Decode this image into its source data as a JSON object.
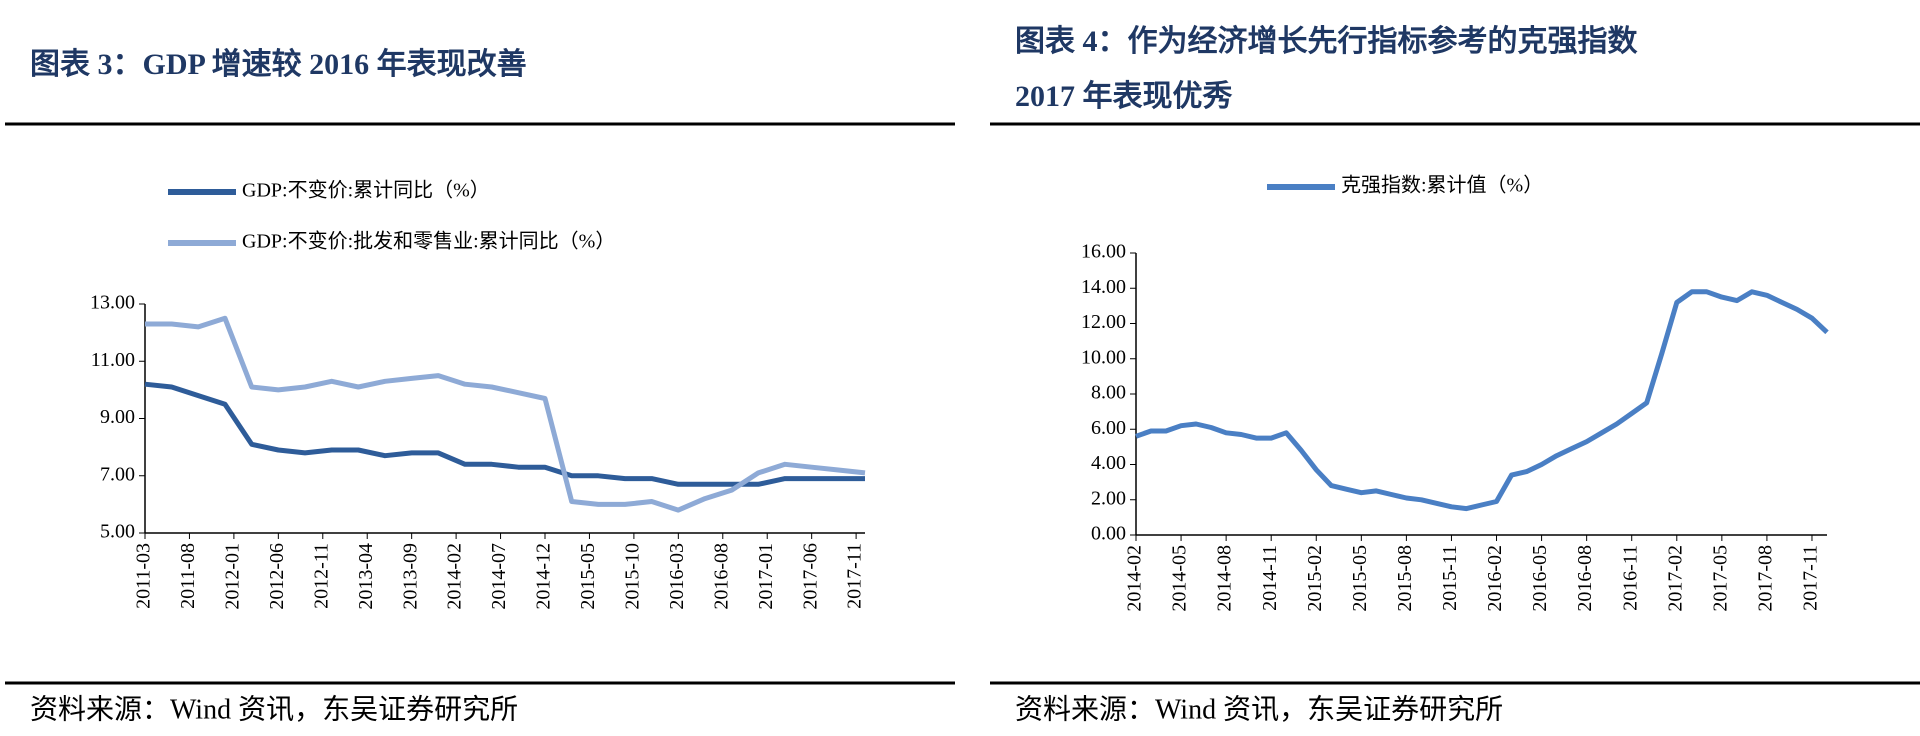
{
  "chart_data": [
    {
      "type": "line",
      "title": [
        "图表 3：GDP 增速较 2016 年表现改善"
      ],
      "source": "资料来源：Wind 资讯，东吴证券研究所",
      "x": [
        "2011-03",
        "2011-06",
        "2011-09",
        "2011-12",
        "2012-03",
        "2012-06",
        "2012-09",
        "2012-12",
        "2013-03",
        "2013-06",
        "2013-09",
        "2013-12",
        "2014-03",
        "2014-06",
        "2014-09",
        "2014-12",
        "2015-03",
        "2015-06",
        "2015-09",
        "2015-12",
        "2016-03",
        "2016-06",
        "2016-09",
        "2016-12",
        "2017-03",
        "2017-06",
        "2017-09",
        "2017-12"
      ],
      "series": [
        {
          "name": "GDP:不变价:累计同比（%）",
          "color": "#2e5c99",
          "values": [
            10.2,
            10.1,
            9.8,
            9.5,
            8.1,
            7.9,
            7.8,
            7.9,
            7.9,
            7.7,
            7.8,
            7.8,
            7.4,
            7.4,
            7.3,
            7.3,
            7.0,
            7.0,
            6.9,
            6.9,
            6.7,
            6.7,
            6.7,
            6.7,
            6.9,
            6.9,
            6.9,
            6.9
          ]
        },
        {
          "name": "GDP:不变价:批发和零售业:累计同比（%）",
          "color": "#8eaad6",
          "values": [
            12.3,
            12.3,
            12.2,
            12.5,
            10.1,
            10.0,
            10.1,
            10.3,
            10.1,
            10.3,
            10.4,
            10.5,
            10.2,
            10.1,
            9.9,
            9.7,
            6.1,
            6.0,
            6.0,
            6.1,
            5.8,
            6.2,
            6.5,
            7.1,
            7.4,
            7.3,
            7.2,
            7.1
          ]
        }
      ],
      "xlim": [
        "2011-03",
        "2017-12"
      ],
      "xticks": [
        "2011-03",
        "2011-08",
        "2012-01",
        "2012-06",
        "2012-11",
        "2013-04",
        "2013-09",
        "2014-02",
        "2014-07",
        "2014-12",
        "2015-05",
        "2015-10",
        "2016-03",
        "2016-08",
        "2017-01",
        "2017-06",
        "2017-11"
      ],
      "ylim": [
        5,
        13
      ],
      "yticks": [
        {
          "value": 5,
          "label": "5.00"
        },
        {
          "value": 7,
          "label": "7.00"
        },
        {
          "value": 9,
          "label": "9.00"
        },
        {
          "value": 11,
          "label": "11.00"
        },
        {
          "value": 13,
          "label": "13.00"
        }
      ]
    },
    {
      "type": "line",
      "title": [
        "图表 4：作为经济增长先行指标参考的克强指数",
        "2017 年表现优秀"
      ],
      "source": "资料来源：Wind 资讯，东吴证券研究所",
      "x": [
        "2014-02",
        "2014-03",
        "2014-04",
        "2014-05",
        "2014-06",
        "2014-07",
        "2014-08",
        "2014-09",
        "2014-10",
        "2014-11",
        "2014-12",
        "2015-01",
        "2015-02",
        "2015-03",
        "2015-04",
        "2015-05",
        "2015-06",
        "2015-07",
        "2015-08",
        "2015-09",
        "2015-10",
        "2015-11",
        "2015-12",
        "2016-01",
        "2016-02",
        "2016-03",
        "2016-04",
        "2016-05",
        "2016-06",
        "2016-07",
        "2016-08",
        "2016-09",
        "2016-10",
        "2016-11",
        "2016-12",
        "2017-01",
        "2017-02",
        "2017-03",
        "2017-04",
        "2017-05",
        "2017-06",
        "2017-07",
        "2017-08",
        "2017-09",
        "2017-10",
        "2017-11",
        "2017-12"
      ],
      "series": [
        {
          "name": "克强指数:累计值（%）",
          "color": "#4a7fc4",
          "values": [
            5.6,
            5.9,
            5.9,
            6.2,
            6.3,
            6.1,
            5.8,
            5.7,
            5.5,
            5.5,
            5.8,
            4.8,
            3.7,
            2.8,
            2.6,
            2.4,
            2.5,
            2.3,
            2.1,
            2.0,
            1.8,
            1.6,
            1.5,
            1.7,
            1.9,
            3.4,
            3.6,
            4.0,
            4.5,
            4.9,
            5.3,
            5.8,
            6.3,
            6.9,
            7.5,
            10.3,
            13.2,
            13.8,
            13.8,
            13.5,
            13.3,
            13.8,
            13.6,
            13.2,
            12.8,
            12.3,
            11.5
          ]
        }
      ],
      "xlim": [
        "2014-02",
        "2017-12"
      ],
      "xticks": [
        "2014-02",
        "2014-05",
        "2014-08",
        "2014-11",
        "2015-02",
        "2015-05",
        "2015-08",
        "2015-11",
        "2016-02",
        "2016-05",
        "2016-08",
        "2016-11",
        "2017-02",
        "2017-05",
        "2017-08",
        "2017-11"
      ],
      "ylim": [
        0,
        16
      ],
      "yticks": [
        {
          "value": 0,
          "label": "0.00"
        },
        {
          "value": 2,
          "label": "2.00"
        },
        {
          "value": 4,
          "label": "4.00"
        },
        {
          "value": 6,
          "label": "6.00"
        },
        {
          "value": 8,
          "label": "8.00"
        },
        {
          "value": 10,
          "label": "10.00"
        },
        {
          "value": 12,
          "label": "12.00"
        },
        {
          "value": 14,
          "label": "14.00"
        },
        {
          "value": 16,
          "label": "16.00"
        }
      ]
    }
  ]
}
